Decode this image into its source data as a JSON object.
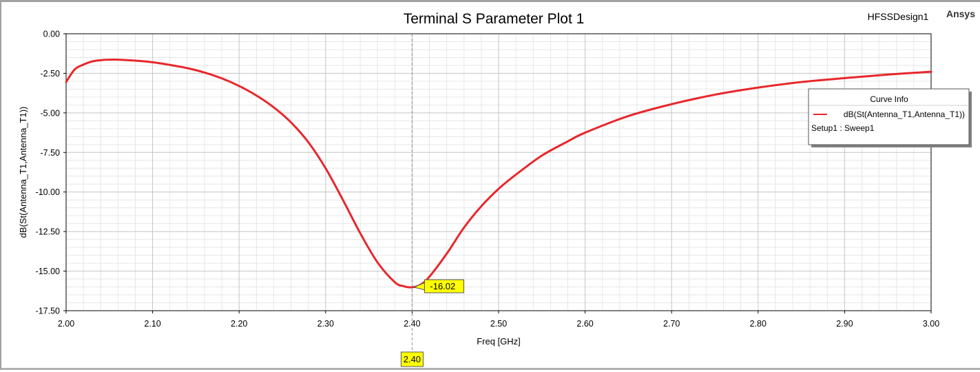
{
  "header": {
    "design_name": "HFSSDesign1",
    "brand": "Ansys"
  },
  "chart_data": {
    "type": "line",
    "title": "Terminal S Parameter Plot 1",
    "xlabel": "Freq [GHz]",
    "ylabel": "dB(St(Antenna_T1,Antenna_T1))",
    "xlim": [
      2.0,
      3.0
    ],
    "ylim": [
      -17.5,
      0.0
    ],
    "x_ticks": [
      "2.00",
      "2.10",
      "2.20",
      "2.30",
      "2.40",
      "2.50",
      "2.60",
      "2.70",
      "2.80",
      "2.90",
      "3.00"
    ],
    "y_ticks": [
      "0.00",
      "-2.50",
      "-5.00",
      "-7.50",
      "-10.00",
      "-12.50",
      "-15.00",
      "-17.50"
    ],
    "grid": true,
    "series": [
      {
        "name": "dB(St(Antenna_T1,Antenna_T1))",
        "color": "#e8262b",
        "x": [
          2.0,
          2.01,
          2.02,
          2.03,
          2.04,
          2.05,
          2.06,
          2.08,
          2.1,
          2.12,
          2.14,
          2.16,
          2.18,
          2.2,
          2.22,
          2.24,
          2.26,
          2.28,
          2.3,
          2.32,
          2.34,
          2.36,
          2.38,
          2.39,
          2.4,
          2.41,
          2.42,
          2.44,
          2.46,
          2.48,
          2.5,
          2.52,
          2.55,
          2.58,
          2.6,
          2.65,
          2.7,
          2.75,
          2.8,
          2.85,
          2.9,
          2.95,
          3.0
        ],
        "y": [
          -3.05,
          -2.25,
          -1.95,
          -1.75,
          -1.67,
          -1.64,
          -1.64,
          -1.7,
          -1.8,
          -1.97,
          -2.17,
          -2.45,
          -2.82,
          -3.3,
          -3.9,
          -4.65,
          -5.6,
          -6.85,
          -8.5,
          -10.5,
          -12.6,
          -14.45,
          -15.7,
          -15.95,
          -16.02,
          -15.85,
          -15.35,
          -13.9,
          -12.25,
          -10.9,
          -9.8,
          -8.9,
          -7.7,
          -6.8,
          -6.25,
          -5.2,
          -4.45,
          -3.85,
          -3.4,
          -3.05,
          -2.8,
          -2.58,
          -2.4
        ]
      }
    ],
    "legend": {
      "title": "Curve Info",
      "entries": [
        "dB(St(Antenna_T1,Antenna_T1))"
      ],
      "subtitle": "Setup1 : Sweep1",
      "placement": "top-right"
    },
    "marker": {
      "x": 2.4,
      "y": -16.02,
      "x_label": "2.40",
      "y_label": "-16.02"
    }
  }
}
